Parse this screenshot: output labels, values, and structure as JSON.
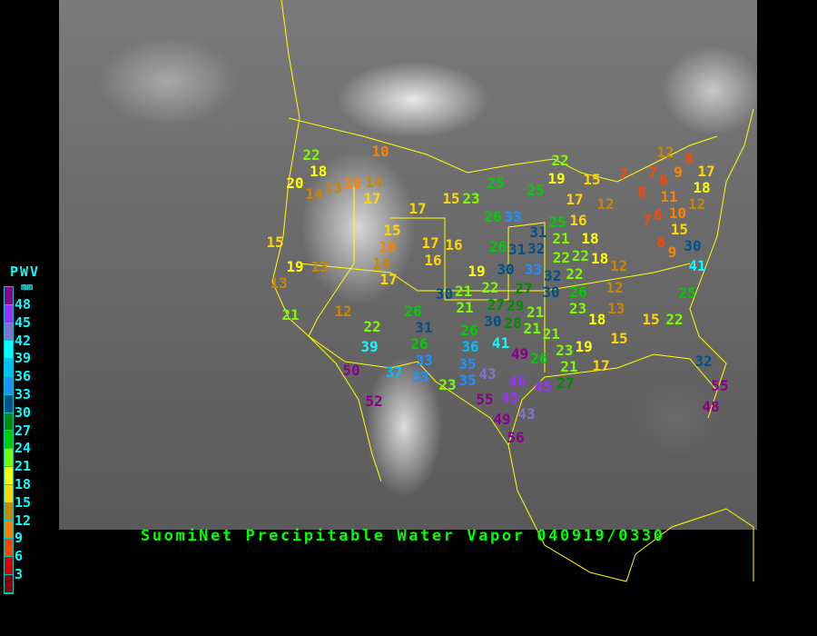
{
  "title": "SuomiNet Precipitable Water Vapor 040919/0330",
  "legend": {
    "title": "PWV",
    "unit": "mm",
    "labels": [
      "48",
      "45",
      "42",
      "39",
      "36",
      "33",
      "30",
      "27",
      "24",
      "21",
      "18",
      "15",
      "12",
      "9",
      "6",
      "3"
    ],
    "colors": [
      "#8b008b",
      "#9b30ff",
      "#8470d0",
      "#00ffff",
      "#00bfff",
      "#1e90ff",
      "#00508c",
      "#008b00",
      "#00cd00",
      "#7cfc00",
      "#ffff00",
      "#ffd700",
      "#cd8500",
      "#ff8000",
      "#ff4500",
      "#dd0000",
      "#8b0000"
    ]
  },
  "colors": {
    "border": "#ffff00",
    "title": "#00ff00",
    "legend_text": "#00ffff"
  },
  "stations": [
    22,
    18,
    20,
    14,
    13,
    10,
    14,
    17,
    10,
    17,
    15,
    23,
    25,
    26,
    33,
    15,
    19,
    13,
    13,
    15,
    10,
    14,
    17,
    17,
    16,
    16,
    19,
    30,
    21,
    21,
    12,
    22,
    39,
    26,
    31,
    26,
    33,
    33,
    37,
    50,
    52,
    23,
    35,
    43,
    55,
    45,
    46,
    45,
    49,
    43,
    56,
    22,
    19,
    15,
    7,
    7,
    6,
    12,
    8,
    9,
    17,
    18,
    8,
    12,
    11,
    10,
    6,
    7,
    15,
    25,
    17,
    12,
    25,
    16,
    31,
    21,
    26,
    31,
    32,
    18,
    22,
    22,
    18,
    12,
    8,
    9,
    30,
    41,
    30,
    33,
    32,
    22,
    22,
    27,
    30,
    26,
    21,
    12,
    25,
    23,
    13,
    18,
    15,
    22,
    30,
    29,
    28,
    21,
    27,
    21,
    21,
    41,
    49,
    26,
    23,
    19,
    21,
    27,
    17,
    15,
    32,
    55,
    48,
    26,
    36,
    35
  ]
}
